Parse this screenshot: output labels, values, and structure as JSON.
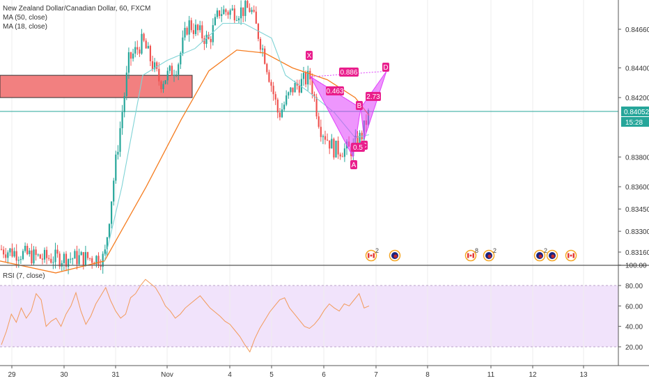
{
  "header": {
    "title": "New Zealand Dollar/Canadian Dollar, 60, FXCM",
    "indicators": [
      "MA (50, close)",
      "MA (18, close)"
    ],
    "rsi_label": "RSI (7, close)"
  },
  "price_badge": {
    "value": "0.84052",
    "countdown": "15:28",
    "color": "#26a69a"
  },
  "colors": {
    "up": "#26a69a",
    "down": "#ef5350",
    "ma50": "#f57c1f",
    "ma18": "#7fd3d6",
    "pattern": "#e040fb",
    "pattern_label": "#e91e8c",
    "zone_fill": "#f28080",
    "zone_border": "#333333",
    "rsi_line": "#f29a5a",
    "rsi_band": "#f1e3fb"
  },
  "x_axis": [
    "29",
    "30",
    "31",
    "Nov",
    "4",
    "5",
    "6",
    "7",
    "8",
    "11",
    "12",
    "13"
  ],
  "rsi_axis": [
    "100.00",
    "80.00",
    "60.00",
    "40.00",
    "20.00"
  ],
  "pattern_labels": {
    "X": "X",
    "A": "A",
    "B": "B",
    "C": "C",
    "D": "D",
    "xb": "0.886",
    "ab": "0.463",
    "bc": "0.5",
    "cd": "2.73"
  },
  "events": [
    {
      "type": "flag-ca",
      "count": "2"
    },
    {
      "type": "flag-us",
      "count": ""
    },
    {
      "type": "flag-ca",
      "count": "8"
    },
    {
      "type": "flag-us",
      "count": "2"
    },
    {
      "type": "flag-us",
      "count": "2"
    },
    {
      "type": "flag-us",
      "count": ""
    },
    {
      "type": "flag-ca",
      "count": ""
    }
  ],
  "chart_data": {
    "type": "candlestick",
    "title": "New Zealand Dollar/Canadian Dollar, 60, FXCM",
    "y_ticks": [
      0.8466,
      0.844,
      0.842,
      0.838,
      0.836,
      0.8345,
      0.833,
      0.8316
    ],
    "last_price": 0.84052,
    "series": [
      {
        "name": "MA (50, close)",
        "points": [
          [
            0,
            0.831
          ],
          [
            80,
            0.8302
          ],
          [
            150,
            0.831
          ],
          [
            210,
            0.836
          ],
          [
            260,
            0.8405
          ],
          [
            300,
            0.8438
          ],
          [
            340,
            0.8452
          ],
          [
            380,
            0.845
          ],
          [
            420,
            0.844
          ],
          [
            470,
            0.8432
          ],
          [
            510,
            0.842
          ],
          [
            530,
            0.8408
          ]
        ]
      },
      {
        "name": "MA (18, close)",
        "points": [
          [
            150,
            0.831
          ],
          [
            175,
            0.836
          ],
          [
            205,
            0.8435
          ],
          [
            240,
            0.8445
          ],
          [
            280,
            0.8453
          ],
          [
            320,
            0.847
          ],
          [
            350,
            0.847
          ],
          [
            390,
            0.846
          ],
          [
            410,
            0.8435
          ],
          [
            440,
            0.8425
          ],
          [
            480,
            0.841
          ],
          [
            510,
            0.8393
          ],
          [
            530,
            0.8395
          ]
        ]
      }
    ],
    "pattern": {
      "X": 0.8434,
      "A": 0.838,
      "B": 0.8413,
      "C": 0.8392,
      "D": 0.8434,
      "ratios": {
        "XB": 0.886,
        "AB": 0.463,
        "BC": 0.5,
        "CD": 2.73
      }
    },
    "resistance_zone": [
      0.842,
      0.8435
    ],
    "rsi": {
      "name": "RSI (7, close)",
      "ylim": [
        0,
        100
      ],
      "band": [
        20,
        80
      ],
      "values": [
        22,
        35,
        52,
        44,
        58,
        48,
        55,
        72,
        66,
        40,
        45,
        48,
        40,
        52,
        60,
        73,
        55,
        42,
        50,
        62,
        70,
        78,
        65,
        55,
        48,
        52,
        68,
        72,
        80,
        86,
        82,
        78,
        70,
        60,
        55,
        48,
        52,
        58,
        62,
        66,
        70,
        64,
        58,
        54,
        50,
        45,
        42,
        36,
        30,
        22,
        15,
        28,
        38,
        46,
        54,
        60,
        66,
        68,
        58,
        52,
        46,
        40,
        38,
        42,
        48,
        56,
        62,
        58,
        55,
        62,
        60,
        66,
        72,
        58,
        60
      ]
    }
  }
}
